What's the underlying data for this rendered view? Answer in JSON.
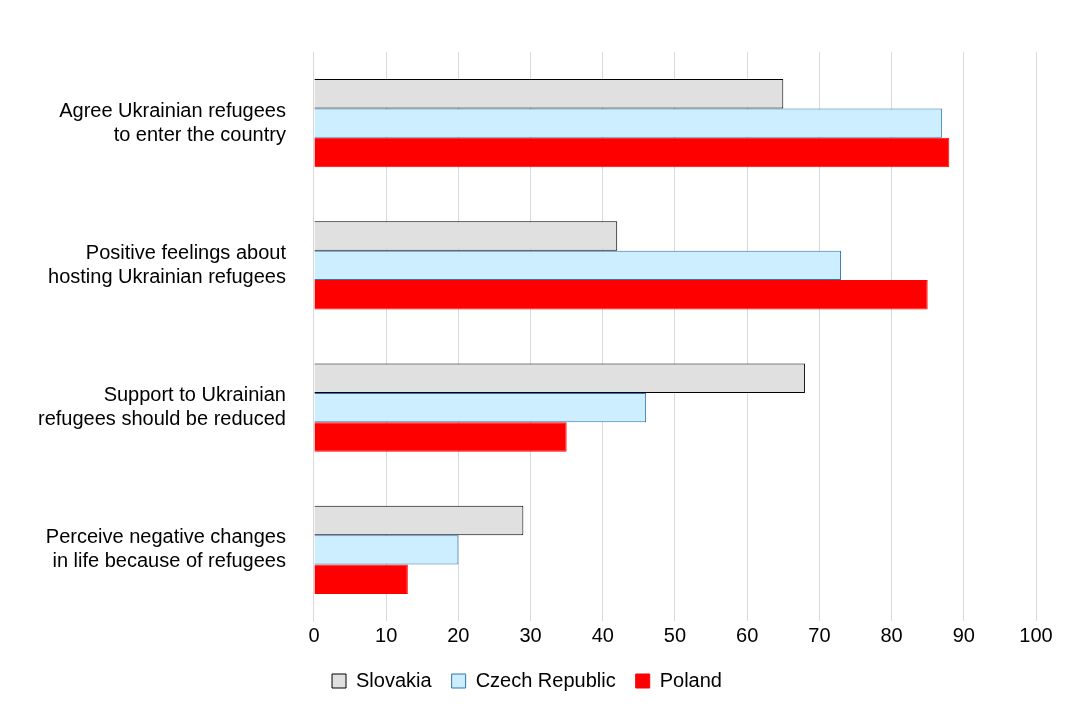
{
  "chart_data": {
    "type": "bar",
    "orientation": "horizontal",
    "categories": [
      "Agree Ukrainian refugees to enter the country",
      "Positive feelings about hosting Ukrainian refugees",
      "Support to Ukrainian refugees should be reduced",
      "Perceive negative changes in life because of refugees"
    ],
    "series": [
      {
        "name": "Slovakia",
        "color": "#e0e0e0",
        "values": [
          65,
          42,
          68,
          29
        ]
      },
      {
        "name": "Czech Republic",
        "color": "#cceeff",
        "values": [
          87,
          73,
          46,
          20
        ]
      },
      {
        "name": "Poland",
        "color": "#ff0000",
        "values": [
          88,
          85,
          35,
          13
        ]
      }
    ],
    "xlim": [
      0,
      100
    ],
    "xticks": [
      0,
      10,
      20,
      30,
      40,
      50,
      60,
      70,
      80,
      90,
      100
    ],
    "grid": "x",
    "legend": "bottom"
  }
}
